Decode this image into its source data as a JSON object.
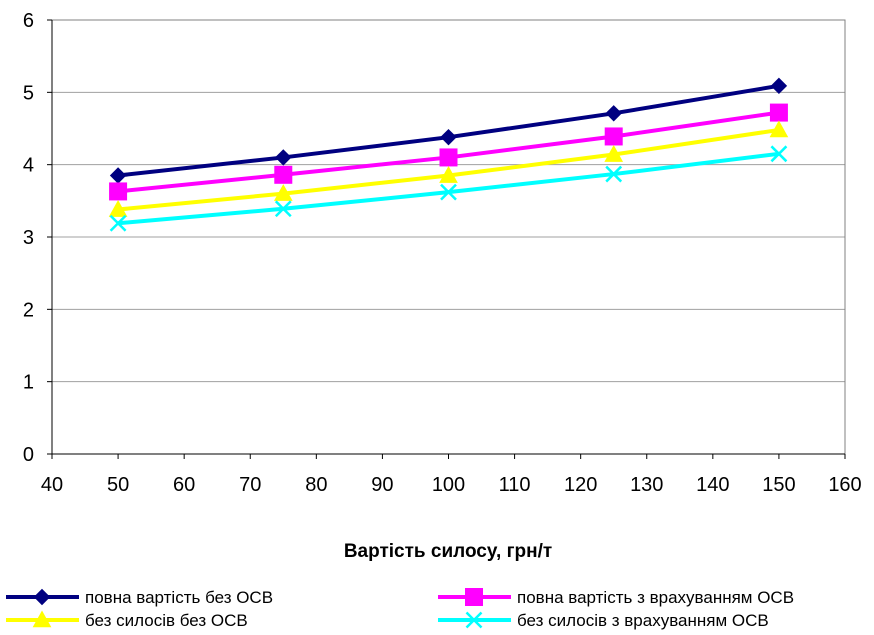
{
  "chart_data": {
    "type": "line",
    "xlabel": "Вартість силосу, грн/т",
    "ylabel": "",
    "xlim": [
      40,
      160
    ],
    "ylim": [
      0,
      6
    ],
    "xticks": [
      40,
      50,
      60,
      70,
      80,
      90,
      100,
      110,
      120,
      130,
      140,
      150,
      160
    ],
    "yticks": [
      0,
      1,
      2,
      3,
      4,
      5,
      6
    ],
    "grid": "horizontal",
    "legend_position": "bottom",
    "series": [
      {
        "name": "повна вартість без ОСВ",
        "color": "#000080",
        "marker": "diamond",
        "x": [
          50,
          75,
          100,
          125,
          150
        ],
        "y": [
          3.85,
          4.1,
          4.38,
          4.71,
          5.09
        ]
      },
      {
        "name": "повна вартість з врахуванням ОСВ",
        "color": "#FF00FF",
        "marker": "square",
        "x": [
          50,
          75,
          100,
          125,
          150
        ],
        "y": [
          3.63,
          3.86,
          4.1,
          4.39,
          4.72
        ]
      },
      {
        "name": "без силосів без ОСВ",
        "color": "#FFFF00",
        "marker": "triangle",
        "x": [
          50,
          75,
          100,
          125,
          150
        ],
        "y": [
          3.38,
          3.6,
          3.85,
          4.14,
          4.48
        ]
      },
      {
        "name": "без силосів з врахуванням ОСВ",
        "color": "#00FFFF",
        "marker": "x",
        "x": [
          50,
          75,
          100,
          125,
          150
        ],
        "y": [
          3.19,
          3.39,
          3.62,
          3.87,
          4.15
        ]
      }
    ]
  }
}
